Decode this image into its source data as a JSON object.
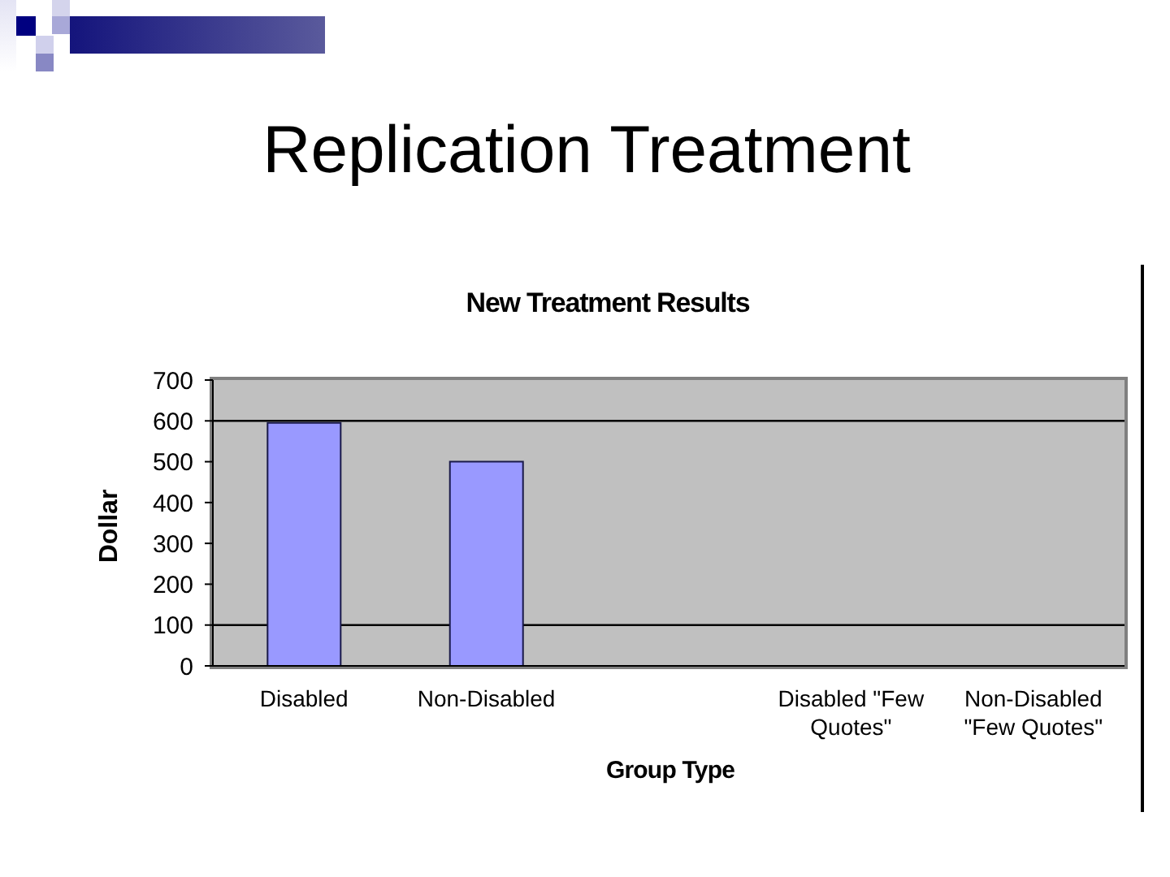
{
  "chart_data": {
    "type": "bar",
    "title": "Replication Treatment",
    "subtitle": "New Treatment Results",
    "xlabel": "Group Type",
    "ylabel": "Dollar",
    "categories": [
      "Disabled",
      "Non-Disabled",
      null,
      "Disabled \"Few Quotes\"",
      "Non-Disabled \"Few Quotes\""
    ],
    "values": [
      595,
      500,
      null,
      null,
      null
    ],
    "color": "#9999ff",
    "ylim": [
      0,
      700
    ],
    "yticks": [
      0,
      100,
      200,
      300,
      400,
      500,
      600,
      700
    ],
    "ref_lines": [
      {
        "axis": "y",
        "value": 600,
        "color": "#000000"
      },
      {
        "axis": "y",
        "value": 100,
        "color": "#000000"
      }
    ]
  }
}
